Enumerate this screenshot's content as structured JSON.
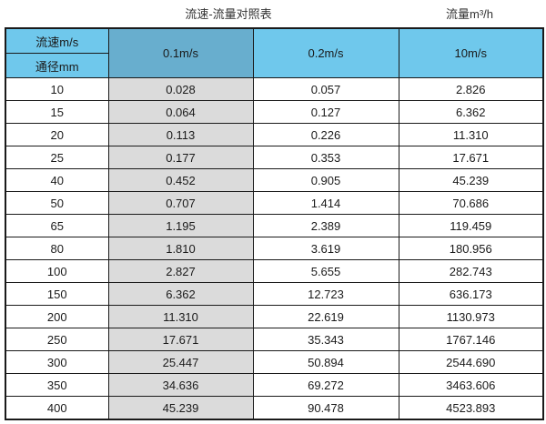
{
  "page": {
    "title_left": "流速-流量对照表",
    "title_right": "流量m³/h"
  },
  "table": {
    "corner_top_label": "流速m/s",
    "corner_bottom_label": "通径mm",
    "columns": [
      "0.1m/s",
      "0.2m/s",
      "10m/s"
    ],
    "rows": [
      [
        "10",
        "0.028",
        "0.057",
        "2.826"
      ],
      [
        "15",
        "0.064",
        "0.127",
        "6.362"
      ],
      [
        "20",
        "0.113",
        "0.226",
        "11.310"
      ],
      [
        "25",
        "0.177",
        "0.353",
        "17.671"
      ],
      [
        "40",
        "0.452",
        "0.905",
        "45.239"
      ],
      [
        "50",
        "0.707",
        "1.414",
        "70.686"
      ],
      [
        "65",
        "1.195",
        "2.389",
        "119.459"
      ],
      [
        "80",
        "1.810",
        "3.619",
        "180.956"
      ],
      [
        "100",
        "2.827",
        "5.655",
        "282.743"
      ],
      [
        "150",
        "6.362",
        "12.723",
        "636.173"
      ],
      [
        "200",
        "11.310",
        "22.619",
        "1130.973"
      ],
      [
        "250",
        "17.671",
        "35.343",
        "1767.146"
      ],
      [
        "300",
        "25.447",
        "50.894",
        "2544.690"
      ],
      [
        "350",
        "34.636",
        "69.272",
        "3463.606"
      ],
      [
        "400",
        "45.239",
        "90.478",
        "4523.893"
      ]
    ]
  },
  "colors": {
    "header_blue": "#6fc8ec",
    "header_dark_blue": "#68aece",
    "gray_column": "#dbdbdb",
    "border": "#1a1a1a"
  },
  "chart_data": {
    "type": "table",
    "title": "流速-流量对照表",
    "value_unit_label": "流量m³/h",
    "row_header": "通径mm",
    "column_header": "流速m/s",
    "columns": [
      "0.1m/s",
      "0.2m/s",
      "10m/s"
    ],
    "diameters_mm": [
      10,
      15,
      20,
      25,
      40,
      50,
      65,
      80,
      100,
      150,
      200,
      250,
      300,
      350,
      400
    ],
    "series": [
      {
        "name": "0.1m/s",
        "values": [
          0.028,
          0.064,
          0.113,
          0.177,
          0.452,
          0.707,
          1.195,
          1.81,
          2.827,
          6.362,
          11.31,
          17.671,
          25.447,
          34.636,
          45.239
        ]
      },
      {
        "name": "0.2m/s",
        "values": [
          0.057,
          0.127,
          0.226,
          0.353,
          0.905,
          1.414,
          2.389,
          3.619,
          5.655,
          12.723,
          22.619,
          35.343,
          50.894,
          69.272,
          90.478
        ]
      },
      {
        "name": "10m/s",
        "values": [
          2.826,
          6.362,
          11.31,
          17.671,
          45.239,
          70.686,
          119.459,
          180.956,
          282.743,
          636.173,
          1130.973,
          1767.146,
          2544.69,
          3463.606,
          4523.893
        ]
      }
    ]
  }
}
